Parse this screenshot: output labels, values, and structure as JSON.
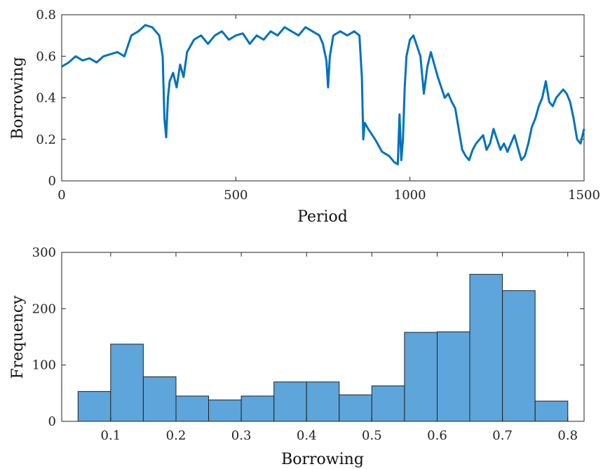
{
  "chart_data": [
    {
      "type": "line",
      "xlabel": "Period",
      "ylabel": "Borrowing",
      "xlim": [
        0,
        1500
      ],
      "ylim": [
        0,
        0.8
      ],
      "xticks": [
        "0",
        "500",
        "1000",
        "1500"
      ],
      "yticks": [
        "0",
        "0.2",
        "0.4",
        "0.6",
        "0.8"
      ],
      "grid": false,
      "color": "#0072BD",
      "x": [
        0,
        20,
        40,
        60,
        80,
        100,
        120,
        140,
        160,
        180,
        200,
        220,
        240,
        260,
        280,
        290,
        295,
        300,
        305,
        310,
        320,
        330,
        340,
        350,
        360,
        380,
        400,
        420,
        440,
        460,
        480,
        500,
        520,
        540,
        560,
        580,
        600,
        620,
        640,
        660,
        680,
        700,
        720,
        740,
        750,
        760,
        765,
        770,
        780,
        800,
        820,
        840,
        855,
        862,
        866,
        870,
        880,
        900,
        920,
        940,
        955,
        965,
        970,
        975,
        980,
        985,
        990,
        1000,
        1010,
        1020,
        1030,
        1040,
        1050,
        1060,
        1070,
        1080,
        1090,
        1100,
        1110,
        1120,
        1130,
        1140,
        1150,
        1160,
        1170,
        1180,
        1190,
        1200,
        1210,
        1220,
        1230,
        1240,
        1250,
        1260,
        1270,
        1280,
        1290,
        1300,
        1310,
        1320,
        1330,
        1340,
        1350,
        1360,
        1370,
        1380,
        1390,
        1400,
        1410,
        1420,
        1430,
        1440,
        1450,
        1460,
        1470,
        1480,
        1490,
        1500
      ],
      "y": [
        0.55,
        0.57,
        0.6,
        0.58,
        0.59,
        0.57,
        0.6,
        0.61,
        0.62,
        0.6,
        0.7,
        0.72,
        0.75,
        0.74,
        0.7,
        0.6,
        0.3,
        0.21,
        0.4,
        0.48,
        0.52,
        0.45,
        0.56,
        0.5,
        0.62,
        0.68,
        0.7,
        0.66,
        0.7,
        0.72,
        0.68,
        0.7,
        0.71,
        0.66,
        0.7,
        0.68,
        0.72,
        0.7,
        0.74,
        0.72,
        0.7,
        0.74,
        0.72,
        0.7,
        0.66,
        0.58,
        0.45,
        0.6,
        0.7,
        0.72,
        0.7,
        0.72,
        0.7,
        0.5,
        0.2,
        0.28,
        0.25,
        0.2,
        0.14,
        0.12,
        0.09,
        0.08,
        0.32,
        0.1,
        0.2,
        0.45,
        0.6,
        0.68,
        0.7,
        0.65,
        0.6,
        0.42,
        0.55,
        0.62,
        0.56,
        0.5,
        0.45,
        0.4,
        0.42,
        0.38,
        0.35,
        0.25,
        0.15,
        0.12,
        0.1,
        0.15,
        0.18,
        0.2,
        0.22,
        0.15,
        0.18,
        0.25,
        0.2,
        0.15,
        0.18,
        0.14,
        0.18,
        0.22,
        0.16,
        0.1,
        0.12,
        0.18,
        0.26,
        0.3,
        0.36,
        0.4,
        0.48,
        0.38,
        0.36,
        0.4,
        0.42,
        0.44,
        0.42,
        0.38,
        0.3,
        0.2,
        0.18,
        0.25
      ],
      "series_note": ""
    },
    {
      "type": "bar",
      "xlabel": "Borrowing",
      "ylabel": "Frequency",
      "xlim": [
        0.025,
        0.825
      ],
      "ylim": [
        0,
        300
      ],
      "xticks": [
        "0.1",
        "0.2",
        "0.3",
        "0.4",
        "0.5",
        "0.6",
        "0.7",
        "0.8"
      ],
      "yticks": [
        "0",
        "100",
        "200",
        "300"
      ],
      "grid": false,
      "color": "#5DA5DA",
      "bin_edges": [
        0.05,
        0.1,
        0.15,
        0.2,
        0.25,
        0.3,
        0.35,
        0.4,
        0.45,
        0.5,
        0.55,
        0.6,
        0.65,
        0.7,
        0.75,
        0.8
      ],
      "values": [
        53,
        137,
        79,
        45,
        38,
        45,
        70,
        70,
        47,
        63,
        158,
        159,
        261,
        232,
        36
      ]
    }
  ]
}
